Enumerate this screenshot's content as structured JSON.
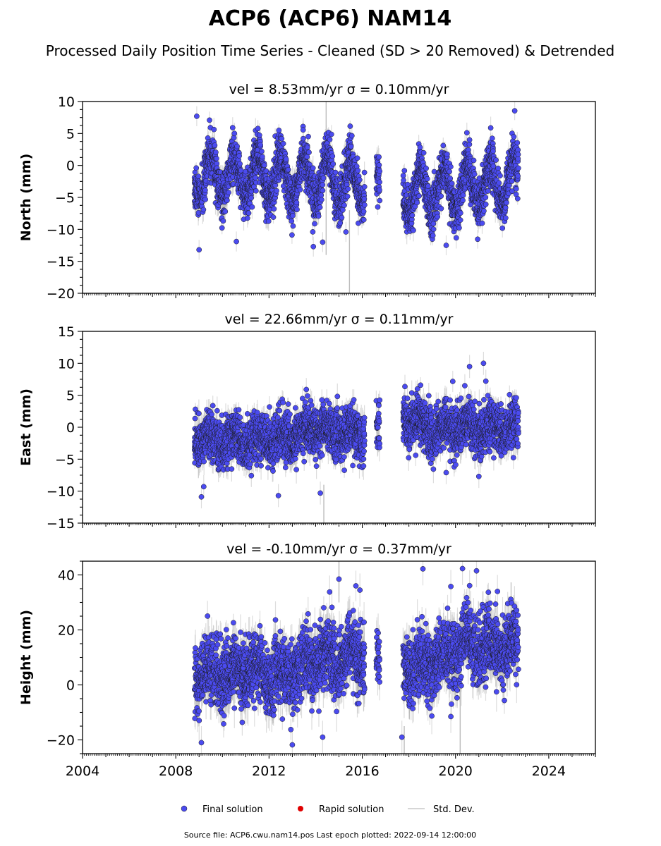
{
  "figure": {
    "title": "ACP6 (ACP6) NAM14",
    "subtitle": "Processed Daily Position Time Series - Cleaned (SD > 20 Removed) & Detrended",
    "source_note": "Source file: ACP6.cwu.nam14.pos  Last epoch plotted: 2022-09-14 12:00:00",
    "colors": {
      "final": "#4b4bf0",
      "rapid": "#e00000",
      "stddev": "#c8c8c8",
      "edge": "#1a1a1a"
    }
  },
  "legend": {
    "placement": "bottom-center",
    "items": [
      {
        "label": "Final solution",
        "kind": "final"
      },
      {
        "label": "Rapid solution",
        "kind": "rapid"
      },
      {
        "label": "Std. Dev.",
        "kind": "stddev"
      }
    ]
  },
  "chart_data": [
    {
      "type": "scatter",
      "title": "vel = 8.53mm/yr   σ = 0.10mm/yr",
      "ylabel": "North (mm)",
      "xlim": [
        2004,
        2026
      ],
      "ylim": [
        -20,
        10
      ],
      "yticks": [
        -20,
        -15,
        -10,
        -5,
        0,
        5,
        10
      ],
      "xticks": [
        2004,
        2008,
        2012,
        2016,
        2020,
        2024
      ],
      "segments": [
        [
          2008.8,
          2016.1
        ],
        [
          2016.6,
          2016.75
        ],
        [
          2017.75,
          2022.7
        ]
      ],
      "seasonal_amp": 3.5,
      "baseline": [
        [
          2008.8,
          -1.5
        ],
        [
          2012.0,
          -2.0
        ],
        [
          2016.0,
          -2.5
        ],
        [
          2017.8,
          -4.5
        ],
        [
          2019.0,
          -4.0
        ],
        [
          2022.7,
          -2.5
        ]
      ],
      "noise": 1.8,
      "sigma": 1.3,
      "outliers": [
        [
          2008.9,
          7.7
        ],
        [
          2009.0,
          -13.2
        ],
        [
          2010.6,
          -11.9
        ],
        [
          2019.6,
          -12.5
        ],
        [
          2020.6,
          4.0
        ],
        [
          2014.3,
          -12.0
        ],
        [
          2013.9,
          -12.7
        ],
        [
          2015.3,
          -10.4
        ]
      ],
      "gray_spikes": [
        [
          2014.45,
          -14,
          10
        ],
        [
          2015.45,
          -20,
          -7
        ]
      ]
    },
    {
      "type": "scatter",
      "title": "vel = 22.66mm/yr   σ = 0.11mm/yr",
      "ylabel": "East (mm)",
      "xlim": [
        2004,
        2026
      ],
      "ylim": [
        -15,
        15
      ],
      "yticks": [
        -15,
        -10,
        -5,
        0,
        5,
        10,
        15
      ],
      "xticks": [
        2004,
        2008,
        2012,
        2016,
        2020,
        2024
      ],
      "segments": [
        [
          2008.8,
          2016.1
        ],
        [
          2016.6,
          2016.75
        ],
        [
          2017.75,
          2022.7
        ]
      ],
      "seasonal_amp": 0.8,
      "baseline": [
        [
          2008.8,
          -2.0
        ],
        [
          2012.0,
          -2.0
        ],
        [
          2014.0,
          -0.5
        ],
        [
          2016.0,
          -1.0
        ],
        [
          2017.8,
          1.5
        ],
        [
          2019.0,
          -0.5
        ],
        [
          2022.7,
          0.0
        ]
      ],
      "noise": 1.9,
      "sigma": 1.5,
      "outliers": [
        [
          2009.1,
          -10.9
        ],
        [
          2009.2,
          -9.3
        ],
        [
          2012.4,
          -10.7
        ],
        [
          2014.2,
          -10.3
        ],
        [
          2020.6,
          9.5
        ],
        [
          2021.2,
          10.0
        ],
        [
          2020.4,
          6.5
        ],
        [
          2021.3,
          7.2
        ],
        [
          2013.6,
          5.9
        ],
        [
          2019.6,
          -7.1
        ],
        [
          2021.0,
          -7.7
        ]
      ],
      "gray_spikes": [
        [
          2014.35,
          -15,
          -9
        ]
      ]
    },
    {
      "type": "scatter",
      "title": "vel = -0.10mm/yr   σ = 0.37mm/yr",
      "ylabel": "Height (mm)",
      "xlim": [
        2004,
        2026
      ],
      "ylim": [
        -25,
        45
      ],
      "yticks": [
        -20,
        0,
        20,
        40
      ],
      "xticks": [
        2004,
        2008,
        2012,
        2016,
        2020,
        2024
      ],
      "segments": [
        [
          2008.8,
          2016.1
        ],
        [
          2016.6,
          2016.75
        ],
        [
          2017.75,
          2022.7
        ]
      ],
      "seasonal_amp": 3.0,
      "baseline": [
        [
          2008.8,
          4.0
        ],
        [
          2011.0,
          5.0
        ],
        [
          2012.5,
          3.0
        ],
        [
          2014.0,
          9.0
        ],
        [
          2016.0,
          10.0
        ],
        [
          2017.8,
          6.0
        ],
        [
          2019.0,
          8.0
        ],
        [
          2020.5,
          15.0
        ],
        [
          2022.7,
          13.0
        ]
      ],
      "noise": 6.0,
      "sigma": 5.0,
      "outliers": [
        [
          2009.1,
          -21.0
        ],
        [
          2013.0,
          -21.8
        ],
        [
          2014.3,
          -19.0
        ],
        [
          2017.7,
          -19.0
        ],
        [
          2018.6,
          42.2
        ],
        [
          2020.3,
          42.3
        ],
        [
          2020.9,
          41.5
        ],
        [
          2015.0,
          38.5
        ],
        [
          2015.9,
          34.5
        ],
        [
          2014.6,
          33.8
        ],
        [
          2021.8,
          34.0
        ],
        [
          2019.8,
          35.8
        ],
        [
          2018.9,
          -8.5
        ],
        [
          2019.8,
          -11.5
        ]
      ],
      "gray_spikes": [
        [
          2020.2,
          -25,
          25
        ],
        [
          2015.0,
          30,
          45
        ],
        [
          2017.8,
          -25,
          -15
        ]
      ]
    }
  ]
}
